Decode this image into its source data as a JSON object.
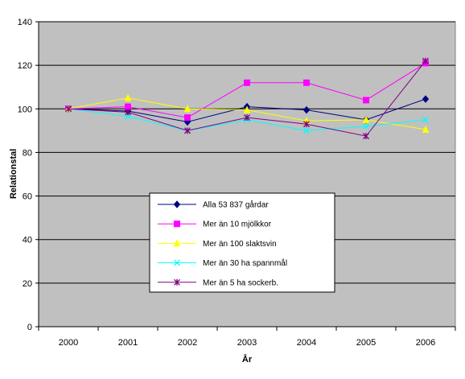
{
  "chart_data": {
    "type": "line",
    "xlabel": "År",
    "ylabel": "Relationstal",
    "x": [
      "2000",
      "2001",
      "2002",
      "2003",
      "2004",
      "2005",
      "2006"
    ],
    "ylim": [
      0,
      140
    ],
    "yticks": [
      0,
      20,
      40,
      60,
      80,
      100,
      120,
      140
    ],
    "grid": "horizontal",
    "plot_background": "#c0c0c0",
    "legend_placement": "center",
    "series": [
      {
        "name": "Alla 53 837 gårdar",
        "color": "#000080",
        "marker": "diamond",
        "values": [
          100,
          99,
          94,
          101,
          99.5,
          95,
          104.5
        ]
      },
      {
        "name": "Mer än 10 mjölkkor",
        "color": "#ff00ff",
        "marker": "square",
        "values": [
          100,
          101,
          96,
          112,
          112,
          104,
          121
        ]
      },
      {
        "name": "Mer än 100 slaktsvin",
        "color": "#ffff00",
        "marker": "triangle",
        "values": [
          100,
          105,
          100,
          99.5,
          94.5,
          95,
          90.5
        ]
      },
      {
        "name": "Mer än 30 ha spannmål",
        "color": "#00ffff",
        "marker": "x",
        "values": [
          100,
          96.5,
          90,
          95,
          90,
          92,
          95
        ]
      },
      {
        "name": "Mer än 5 ha sockerb.",
        "color": "#800080",
        "marker": "star",
        "values": [
          100,
          98.5,
          90,
          96,
          93,
          87.5,
          122
        ]
      }
    ]
  }
}
